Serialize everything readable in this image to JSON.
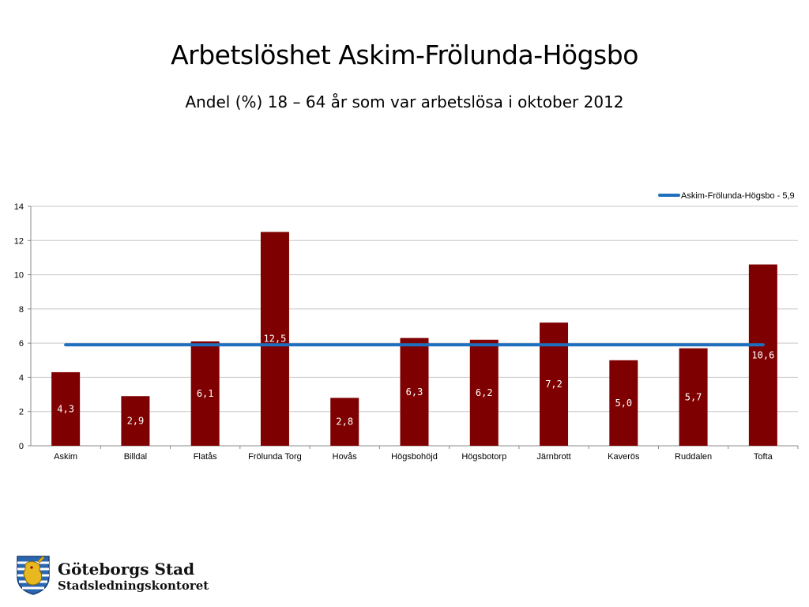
{
  "slide": {
    "title": "Arbetslöshet Askim-Frölunda-Högsbo",
    "subtitle": "Andel (%) 18 – 64 år som var arbetslösa i oktober 2012"
  },
  "chart_data": {
    "type": "bar",
    "categories": [
      "Askim",
      "Billdal",
      "Flatås",
      "Frölunda Torg",
      "Hovås",
      "Högsbohöjd",
      "Högsbotorp",
      "Järnbrott",
      "Kaverös",
      "Ruddalen",
      "Tofta"
    ],
    "series": [
      {
        "values": [
          4.3,
          2.9,
          6.1,
          12.5,
          2.8,
          6.3,
          6.2,
          7.2,
          5.0,
          5.7,
          10.6
        ],
        "labels": [
          "4,3",
          "2,9",
          "6,1",
          "12,5",
          "2,8",
          "6,3",
          "6,2",
          "7,2",
          "5,0",
          "5,7",
          "10,6"
        ],
        "color": "#7f0000"
      }
    ],
    "reference_line": {
      "name": "Askim-Frölunda-Högsbo - 5,9",
      "value": 5.9,
      "color": "#1f6fbf"
    },
    "yticks": [
      0,
      2,
      4,
      6,
      8,
      10,
      12,
      14
    ],
    "ylim": [
      0,
      14
    ],
    "grid": true,
    "legend_position": "top-right",
    "label_color": "#ffffff"
  },
  "footer": {
    "org_name": "Göteborgs Stad",
    "department": "Stadsledningskontoret",
    "logo_icon": "city-crest-lion-icon"
  }
}
